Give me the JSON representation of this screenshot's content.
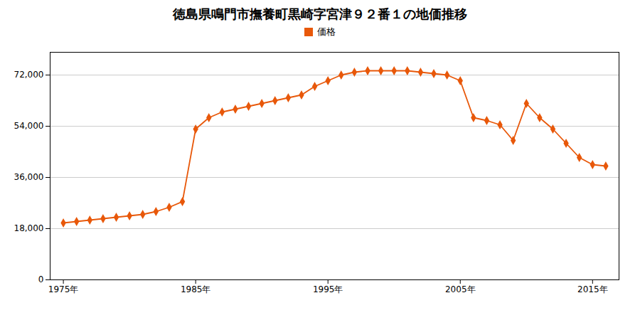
{
  "chart_data": {
    "type": "line",
    "title": "徳島県鳴門市撫養町黒崎字宮津９２番１の地価推移",
    "x": [
      1975,
      1976,
      1977,
      1978,
      1979,
      1980,
      1981,
      1982,
      1983,
      1984,
      1985,
      1986,
      1987,
      1988,
      1989,
      1990,
      1991,
      1992,
      1993,
      1994,
      1995,
      1996,
      1997,
      1998,
      1999,
      2000,
      2001,
      2002,
      2003,
      2004,
      2005,
      2006,
      2007,
      2008,
      2009,
      2010,
      2011,
      2012,
      2013,
      2014,
      2015,
      2016
    ],
    "series": [
      {
        "name": "価格",
        "color": "#E8580A",
        "marker": "diamond",
        "values": [
          20000,
          20500,
          21000,
          21500,
          22000,
          22500,
          23000,
          24000,
          25500,
          27500,
          53000,
          57000,
          59000,
          60000,
          61000,
          62000,
          63000,
          64000,
          65000,
          68000,
          70000,
          72000,
          73000,
          73500,
          73500,
          73500,
          73500,
          73000,
          72500,
          72000,
          70000,
          57000,
          56000,
          54500,
          49000,
          62000,
          57000,
          53000,
          48000,
          43000,
          40500,
          40000
        ]
      }
    ],
    "xlim": [
      1974,
      2017
    ],
    "xticks": [
      {
        "value": 1975,
        "label": "1975年"
      },
      {
        "value": 1985,
        "label": "1985年"
      },
      {
        "value": 1995,
        "label": "1995年"
      },
      {
        "value": 2005,
        "label": "2005年"
      },
      {
        "value": 2015,
        "label": "2015年"
      }
    ],
    "ylim": [
      0,
      80000
    ],
    "yticks": [
      0,
      {
        "value": 18000,
        "label": "18,000"
      },
      {
        "value": 36000,
        "label": "36,000"
      },
      {
        "value": 54000,
        "label": "54,000"
      },
      {
        "value": 72000,
        "label": "72,000"
      }
    ],
    "grid": "y",
    "legend": "top"
  }
}
